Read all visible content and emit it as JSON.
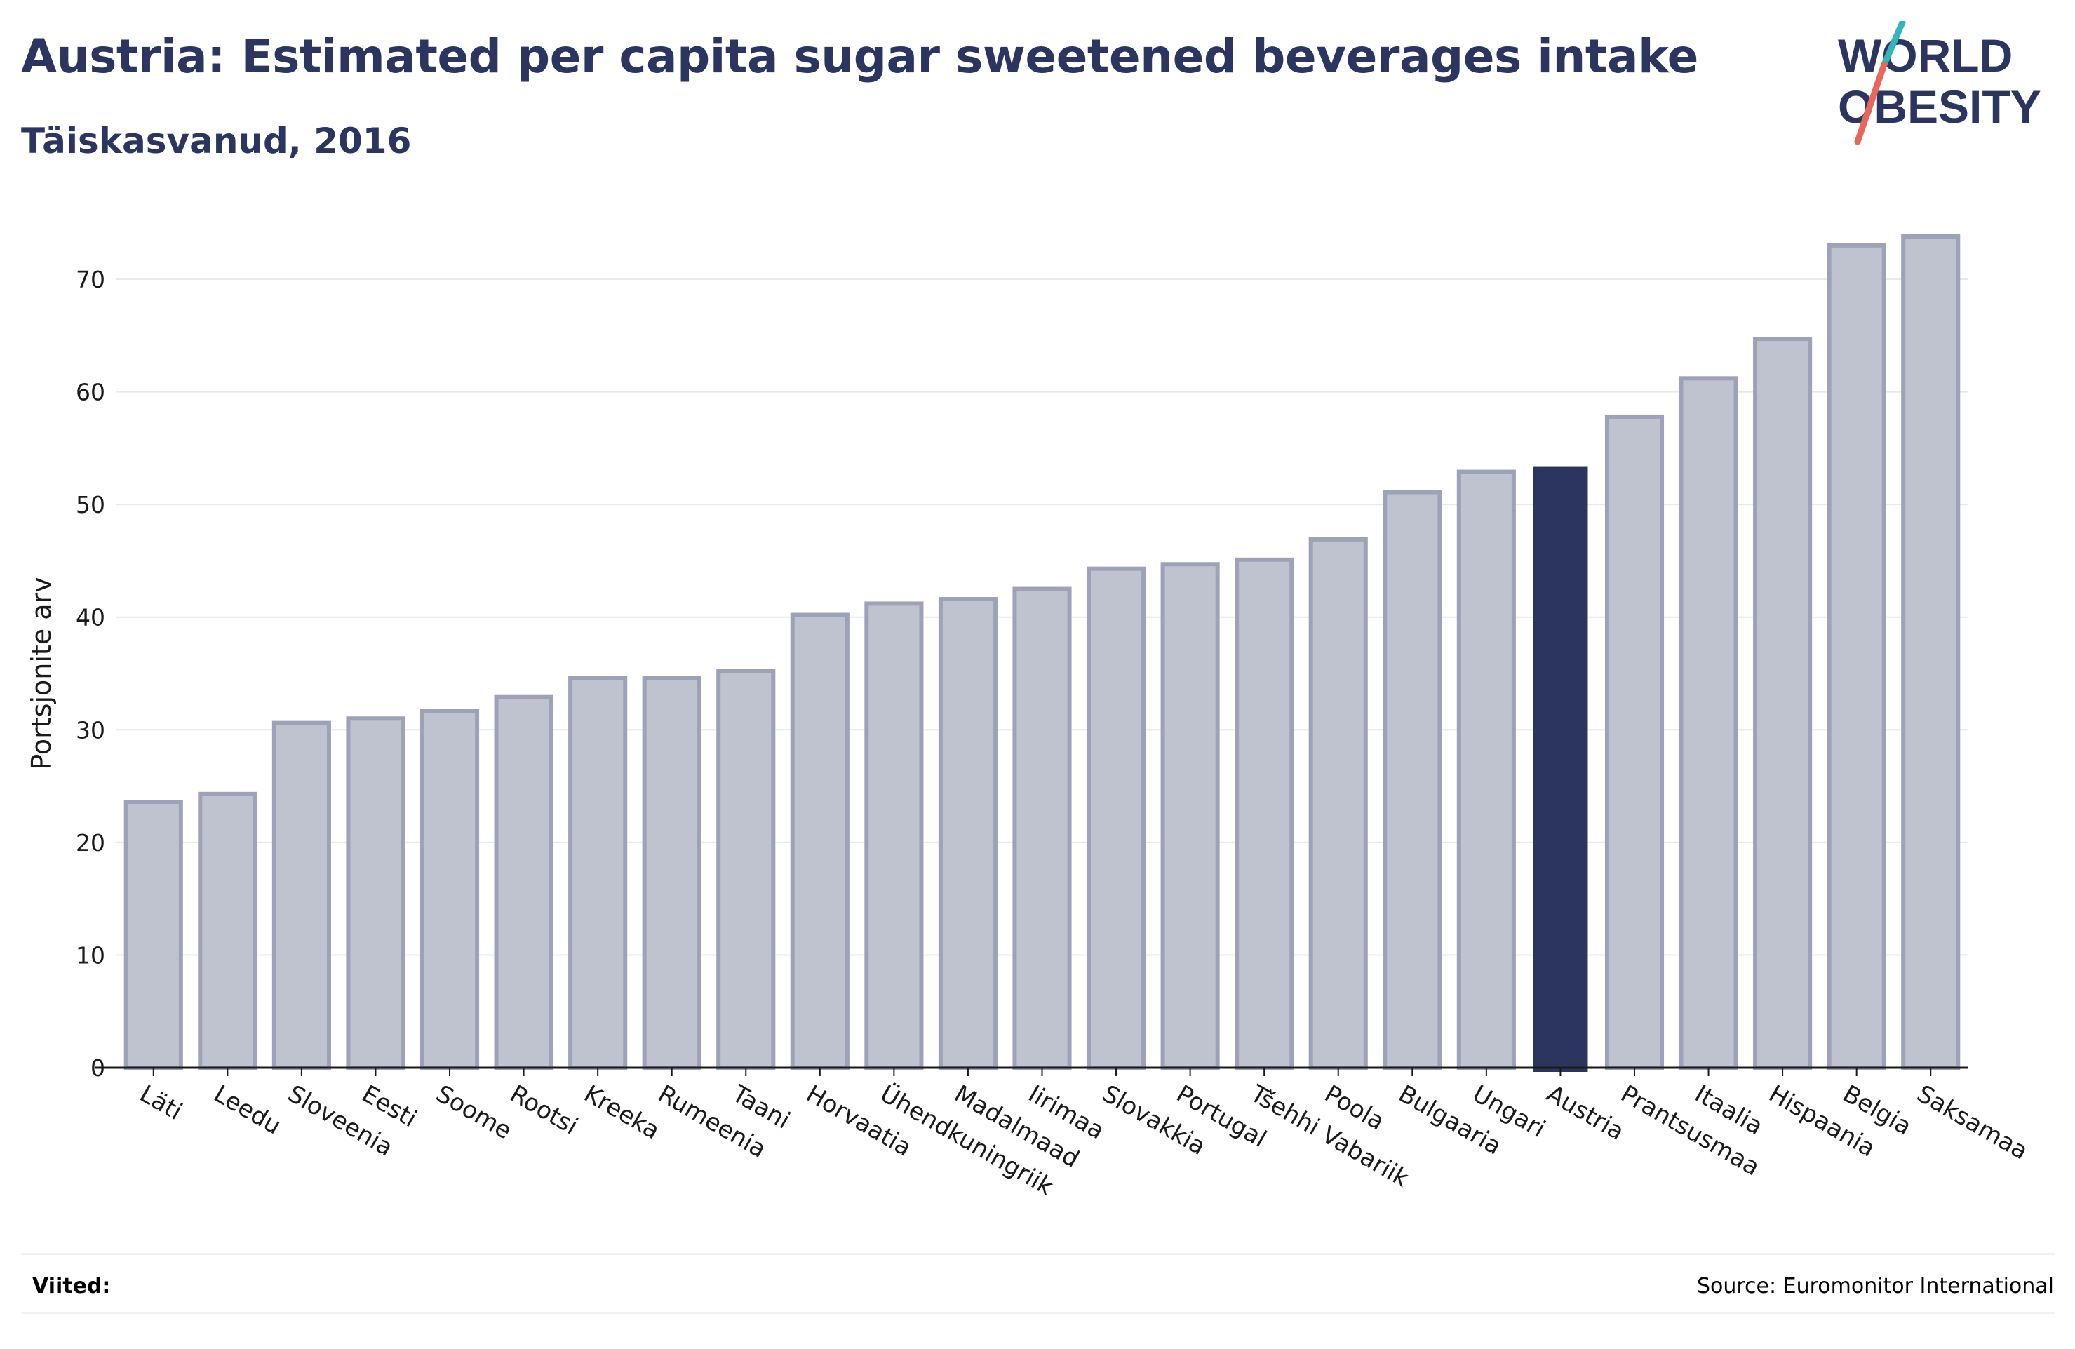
{
  "header": {
    "title": "Austria: Estimated per capita sugar sweetened beverages intake",
    "subtitle": "Täiskasvanud, 2016"
  },
  "logo": {
    "line1": "WORLD",
    "line2": "OBESITY"
  },
  "footer": {
    "notes_label": "Viited:",
    "source": "Source: Euromonitor International"
  },
  "colors": {
    "title": "#2b3560",
    "bar_default_fill": "#bfc2cf",
    "bar_default_stroke": "#9da2b8",
    "bar_highlight": "#2b3560",
    "grid": "#e6e9ee",
    "logo_teal": "#33b6b5",
    "logo_coral": "#e8665a"
  },
  "chart_data": {
    "type": "bar",
    "title": "",
    "xlabel": "",
    "ylabel": "Portsjonite arv",
    "ylim": [
      0,
      75
    ],
    "yticks": [
      0,
      10,
      20,
      30,
      40,
      50,
      60,
      70
    ],
    "grid": true,
    "highlight": "Austria",
    "categories": [
      "Läti",
      "Leedu",
      "Sloveenia",
      "Eesti",
      "Soome",
      "Rootsi",
      "Kreeka",
      "Rumeenia",
      "Taani",
      "Horvaatia",
      "Ühendkuningriik",
      "Madalmaad",
      "Iirimaa",
      "Slovakkia",
      "Portugal",
      "Tšehhi Vabariik",
      "Poola",
      "Bulgaaria",
      "Ungari",
      "Austria",
      "Prantsusmaa",
      "Itaalia",
      "Hispaania",
      "Belgia",
      "Saksamaa"
    ],
    "values": [
      23.6,
      24.3,
      30.6,
      31.0,
      31.7,
      32.9,
      34.6,
      34.6,
      35.2,
      40.2,
      41.2,
      41.6,
      42.5,
      44.3,
      44.7,
      45.1,
      46.9,
      51.1,
      52.9,
      53.4,
      57.8,
      61.2,
      64.7,
      73.0,
      73.8
    ]
  }
}
